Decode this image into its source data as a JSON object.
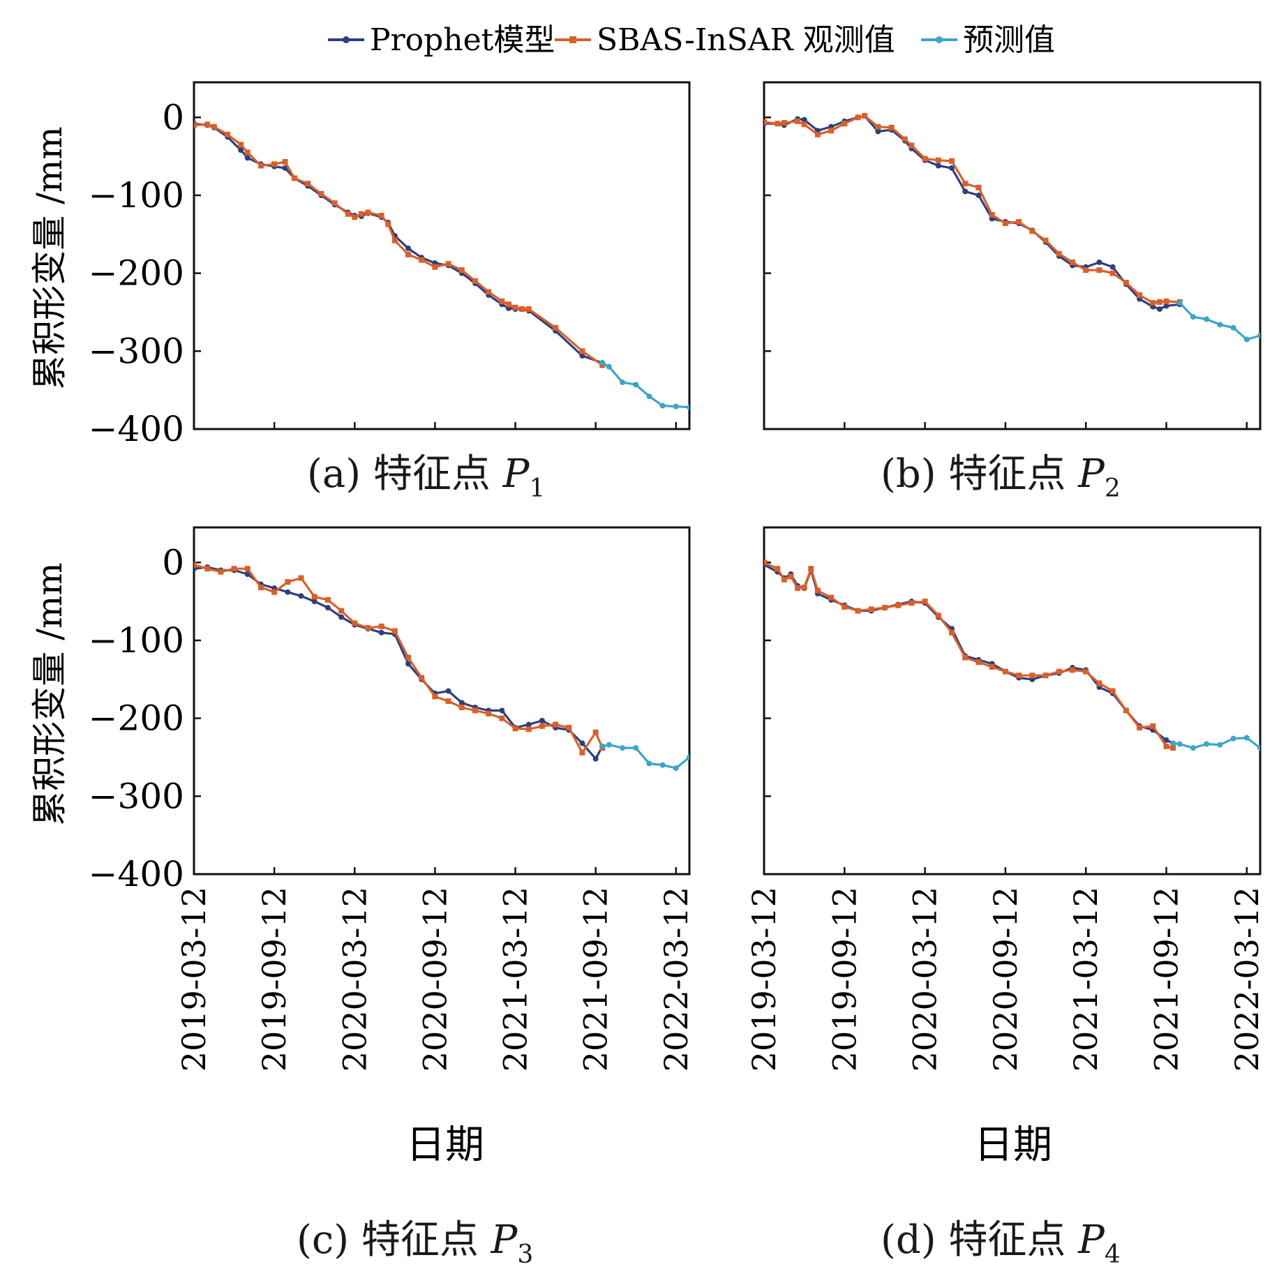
{
  "legend": {
    "prophet": "Prophet模型",
    "observed": "SBAS-InSAR 观测值",
    "predicted": "预测值"
  },
  "colors": {
    "prophet": "#2e3f7f",
    "observed": "#d8602b",
    "predicted": "#3aa6c6",
    "axis": "#111111"
  },
  "axes": {
    "ylabel": "累积形变量 /mm",
    "xlabel": "日期",
    "yticks": [
      0,
      -100,
      -200,
      -300,
      -400
    ],
    "ytick_labels": [
      "0",
      "−100",
      "−200",
      "−300",
      "−400"
    ],
    "ylim": [
      -400,
      45
    ],
    "xticks": [
      0,
      6,
      12,
      18,
      24,
      30,
      36
    ],
    "xtick_labels": [
      "2019-03-12",
      "2019-09-12",
      "2020-03-12",
      "2020-09-12",
      "2021-03-12",
      "2021-09-12",
      "2022-03-12"
    ],
    "xlim": [
      0,
      37
    ]
  },
  "captions": [
    {
      "prefix": "(a) 特征点 ",
      "point": "P",
      "sub": "1"
    },
    {
      "prefix": "(b) 特征点 ",
      "point": "P",
      "sub": "2"
    },
    {
      "prefix": "(c) 特征点 ",
      "point": "P",
      "sub": "3"
    },
    {
      "prefix": "(d) 特征点 ",
      "point": "P",
      "sub": "4"
    }
  ],
  "chart_data": [
    {
      "type": "line",
      "title": "(a) 特征点 P1",
      "xlabel": "日期",
      "ylabel": "累积形变量 /mm",
      "x_unit": "months since 2019-03-12",
      "series": [
        {
          "name": "Prophet模型",
          "x": [
            0,
            1,
            1.5,
            2.5,
            3.5,
            4,
            5,
            6,
            6.8,
            7.5,
            8.5,
            9.5,
            10.5,
            11.5,
            12,
            12.5,
            13,
            14,
            14.5,
            15,
            16,
            17,
            18,
            19,
            20,
            21,
            22,
            23,
            23.5,
            24,
            24.5,
            25,
            27,
            29,
            30.5
          ],
          "y": [
            -8,
            -10,
            -13,
            -25,
            -42,
            -52,
            -60,
            -63,
            -65,
            -78,
            -88,
            -100,
            -112,
            -122,
            -126,
            -127,
            -123,
            -128,
            -135,
            -152,
            -168,
            -180,
            -187,
            -190,
            -200,
            -213,
            -228,
            -240,
            -245,
            -246,
            -246,
            -248,
            -274,
            -306,
            -315
          ]
        },
        {
          "name": "SBAS-InSAR 观测值",
          "x": [
            0,
            1,
            1.5,
            2.5,
            3.5,
            4,
            5,
            6,
            6.8,
            7.5,
            8.5,
            9.5,
            10.5,
            11.5,
            12,
            12.5,
            13,
            14,
            14.5,
            15,
            16,
            17,
            18,
            19,
            20,
            21,
            22,
            23,
            23.5,
            24,
            24.5,
            25,
            27,
            29,
            30.5
          ],
          "y": [
            -10,
            -9,
            -12,
            -22,
            -35,
            -45,
            -62,
            -60,
            -57,
            -78,
            -85,
            -98,
            -110,
            -124,
            -128,
            -124,
            -122,
            -126,
            -137,
            -158,
            -176,
            -183,
            -192,
            -188,
            -196,
            -210,
            -224,
            -236,
            -240,
            -244,
            -246,
            -246,
            -270,
            -300,
            -318
          ]
        },
        {
          "name": "预测值",
          "x": [
            30.5,
            31,
            32,
            33,
            34,
            35,
            36,
            37
          ],
          "y": [
            -315,
            -320,
            -340,
            -343,
            -358,
            -370,
            -371,
            -372
          ]
        }
      ]
    },
    {
      "type": "line",
      "title": "(b) 特征点 P2",
      "xlabel": "日期",
      "ylabel": "累积形变量 /mm",
      "x_unit": "months since 2019-03-12",
      "series": [
        {
          "name": "Prophet模型",
          "x": [
            0,
            1,
            1.5,
            2.5,
            3,
            4,
            5,
            6,
            7,
            7.5,
            8.5,
            9.5,
            10.5,
            11,
            12,
            13,
            14,
            15,
            16,
            17,
            18,
            19,
            20,
            21,
            22,
            23,
            24,
            25,
            26,
            27,
            28,
            29,
            29.5,
            30,
            31
          ],
          "y": [
            -8,
            -8,
            -10,
            -2,
            -3,
            -17,
            -12,
            -5,
            0,
            2,
            -18,
            -16,
            -30,
            -40,
            -55,
            -62,
            -65,
            -95,
            -100,
            -130,
            -134,
            -136,
            -145,
            -160,
            -178,
            -190,
            -192,
            -186,
            -192,
            -214,
            -233,
            -243,
            -246,
            -242,
            -240
          ]
        },
        {
          "name": "SBAS-InSAR 观测值",
          "x": [
            0,
            1,
            1.5,
            2.5,
            3,
            4,
            5,
            6,
            7,
            7.5,
            8.5,
            9.5,
            10.5,
            11,
            12,
            13,
            14,
            15,
            16,
            17,
            18,
            19,
            20,
            21,
            22,
            23,
            24,
            25,
            26,
            27,
            28,
            29,
            29.5,
            30,
            31
          ],
          "y": [
            -6,
            -8,
            -7,
            -5,
            -9,
            -22,
            -17,
            -8,
            0,
            2,
            -12,
            -13,
            -28,
            -36,
            -53,
            -55,
            -56,
            -85,
            -90,
            -125,
            -136,
            -134,
            -146,
            -158,
            -175,
            -186,
            -196,
            -196,
            -200,
            -212,
            -228,
            -238,
            -237,
            -236,
            -237
          ]
        },
        {
          "name": "预测值",
          "x": [
            31,
            32,
            33,
            34,
            35,
            36,
            37
          ],
          "y": [
            -238,
            -256,
            -259,
            -266,
            -270,
            -285,
            -280
          ]
        }
      ]
    },
    {
      "type": "line",
      "title": "(c) 特征点 P3",
      "xlabel": "日期",
      "ylabel": "累积形变量 /mm",
      "x_unit": "months since 2019-03-12",
      "series": [
        {
          "name": "Prophet模型",
          "x": [
            0,
            1,
            2,
            3,
            4,
            5,
            6,
            7,
            8,
            9,
            10,
            11,
            12,
            13,
            14,
            15,
            16,
            17,
            18,
            19,
            20,
            21,
            22,
            23,
            24,
            25,
            26,
            27,
            28,
            29,
            30,
            30.5
          ],
          "y": [
            -8,
            -6,
            -10,
            -10,
            -15,
            -28,
            -33,
            -38,
            -43,
            -50,
            -58,
            -70,
            -80,
            -85,
            -90,
            -92,
            -130,
            -150,
            -168,
            -165,
            -180,
            -186,
            -190,
            -190,
            -212,
            -208,
            -203,
            -212,
            -215,
            -232,
            -252,
            -236
          ]
        },
        {
          "name": "SBAS-InSAR 观测值",
          "x": [
            0,
            1,
            2,
            3,
            4,
            5,
            6,
            7,
            8,
            9,
            10,
            11,
            12,
            13,
            14,
            15,
            16,
            17,
            18,
            19,
            20,
            21,
            22,
            23,
            24,
            25,
            26,
            27,
            28,
            29,
            30,
            30.5
          ],
          "y": [
            -3,
            -8,
            -12,
            -8,
            -8,
            -32,
            -38,
            -25,
            -20,
            -44,
            -48,
            -62,
            -78,
            -84,
            -82,
            -88,
            -122,
            -148,
            -172,
            -178,
            -186,
            -190,
            -194,
            -200,
            -213,
            -214,
            -210,
            -208,
            -212,
            -244,
            -218,
            -238
          ]
        },
        {
          "name": "预测值",
          "x": [
            30.5,
            31,
            32,
            33,
            34,
            35,
            36,
            37
          ],
          "y": [
            -236,
            -234,
            -238,
            -238,
            -258,
            -260,
            -264,
            -250
          ]
        }
      ]
    },
    {
      "type": "line",
      "title": "(d) 特征点 P4",
      "xlabel": "日期",
      "ylabel": "累积形变量 /mm",
      "x_unit": "months since 2019-03-12",
      "series": [
        {
          "name": "Prophet模型",
          "x": [
            0,
            1,
            1.5,
            2,
            2.5,
            3,
            3.5,
            4,
            5,
            6,
            7,
            8,
            9,
            10,
            11,
            12,
            13,
            14,
            15,
            16,
            17,
            18,
            19,
            20,
            21,
            22,
            23,
            24,
            25,
            26,
            27,
            28,
            29,
            30,
            30.5
          ],
          "y": [
            -3,
            -12,
            -20,
            -15,
            -30,
            -33,
            -10,
            -40,
            -48,
            -55,
            -62,
            -62,
            -58,
            -54,
            -50,
            -52,
            -70,
            -85,
            -120,
            -125,
            -130,
            -140,
            -148,
            -150,
            -145,
            -142,
            -135,
            -138,
            -160,
            -168,
            -190,
            -210,
            -215,
            -228,
            -232
          ]
        },
        {
          "name": "SBAS-InSAR 观测值",
          "x": [
            0,
            1,
            1.5,
            2,
            2.5,
            3,
            3.5,
            4,
            5,
            6,
            7,
            8,
            9,
            10,
            11,
            12,
            13,
            14,
            15,
            16,
            17,
            18,
            19,
            20,
            21,
            22,
            23,
            24,
            25,
            26,
            27,
            28,
            29,
            30,
            30.5
          ],
          "y": [
            0,
            -8,
            -22,
            -18,
            -33,
            -32,
            -8,
            -36,
            -45,
            -57,
            -62,
            -60,
            -58,
            -55,
            -52,
            -50,
            -68,
            -90,
            -122,
            -128,
            -134,
            -140,
            -145,
            -145,
            -145,
            -140,
            -138,
            -140,
            -155,
            -165,
            -190,
            -212,
            -210,
            -236,
            -238
          ]
        },
        {
          "name": "预测值",
          "x": [
            30.5,
            31,
            32,
            33,
            34,
            35,
            36,
            37
          ],
          "y": [
            -232,
            -233,
            -238,
            -233,
            -234,
            -226,
            -225,
            -238
          ]
        }
      ]
    }
  ]
}
